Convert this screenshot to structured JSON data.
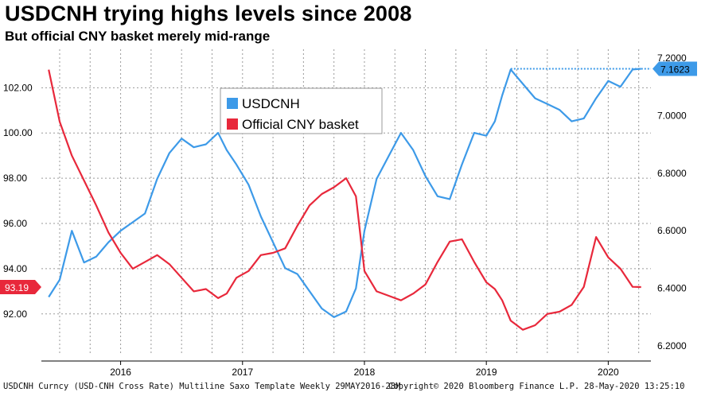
{
  "title": "USDCNH trying highs levels since 2008",
  "subtitle": "But official CNY basket merely mid-range",
  "footer": {
    "left": "USDCNH Curncy (USD-CNH Cross Rate) Multiline Saxo Template  Weekly 29MAY2016-28M",
    "mid": "Copyright© 2020 Bloomberg Finance L.P.",
    "right": "28-May-2020 13:25:10"
  },
  "chart_data": {
    "type": "line",
    "title": "USDCNH trying highs levels since 2008",
    "subtitle": "But official CNY basket merely mid-range",
    "x_ticks": [
      "2016",
      "2017",
      "2018",
      "2019",
      "2020"
    ],
    "x_tick_positions": [
      2016.0,
      2017.0,
      2018.0,
      2019.0,
      2020.0
    ],
    "xlim": [
      2015.35,
      2020.35
    ],
    "left_axis": {
      "ticks": [
        "92.00",
        "94.00",
        "96.00",
        "98.00",
        "100.00",
        "102.00"
      ],
      "ylim": [
        90.2,
        103.7
      ]
    },
    "right_axis": {
      "ticks": [
        "6.2000",
        "6.4000",
        "6.6000",
        "6.8000",
        "7.0000",
        "7.2000"
      ],
      "ylim": [
        6.17,
        7.23
      ]
    },
    "grid": true,
    "legend": {
      "placement": "top-center",
      "entries": [
        "USDCNH",
        "Official CNY basket"
      ]
    },
    "series": [
      {
        "name": "USDCNH",
        "axis": "right",
        "color": "#3d9ae8",
        "last_value_label": "7.1623",
        "x": [
          2015.41,
          2015.5,
          2015.6,
          2015.7,
          2015.8,
          2015.9,
          2016.0,
          2016.1,
          2016.2,
          2016.3,
          2016.4,
          2016.5,
          2016.6,
          2016.7,
          2016.8,
          2016.87,
          2016.95,
          2017.05,
          2017.15,
          2017.25,
          2017.35,
          2017.45,
          2017.55,
          2017.65,
          2017.75,
          2017.85,
          2017.93,
          2018.0,
          2018.1,
          2018.2,
          2018.3,
          2018.4,
          2018.5,
          2018.6,
          2018.7,
          2018.8,
          2018.9,
          2019.0,
          2019.07,
          2019.13,
          2019.2,
          2019.3,
          2019.4,
          2019.5,
          2019.6,
          2019.7,
          2019.8,
          2019.9,
          2020.0,
          2020.1,
          2020.2,
          2020.27
        ],
        "y": [
          6.37,
          6.43,
          6.6,
          6.49,
          6.51,
          6.56,
          6.6,
          6.63,
          6.66,
          6.78,
          6.87,
          6.92,
          6.89,
          6.9,
          6.94,
          6.88,
          6.83,
          6.76,
          6.65,
          6.56,
          6.47,
          6.45,
          6.39,
          6.33,
          6.3,
          6.32,
          6.4,
          6.6,
          6.78,
          6.86,
          6.94,
          6.88,
          6.79,
          6.72,
          6.71,
          6.83,
          6.94,
          6.93,
          6.98,
          7.07,
          7.16,
          7.11,
          7.06,
          7.04,
          7.02,
          6.98,
          6.99,
          7.06,
          7.12,
          7.1,
          7.16,
          7.1623
        ]
      },
      {
        "name": "Official CNY basket",
        "axis": "left",
        "color": "#e8283b",
        "last_value_label": "93.19",
        "x": [
          2015.41,
          2015.5,
          2015.6,
          2015.7,
          2015.8,
          2015.9,
          2016.0,
          2016.1,
          2016.2,
          2016.3,
          2016.4,
          2016.5,
          2016.6,
          2016.7,
          2016.8,
          2016.87,
          2016.95,
          2017.05,
          2017.15,
          2017.25,
          2017.35,
          2017.45,
          2017.55,
          2017.65,
          2017.75,
          2017.85,
          2017.93,
          2018.0,
          2018.1,
          2018.2,
          2018.3,
          2018.4,
          2018.5,
          2018.6,
          2018.7,
          2018.8,
          2018.9,
          2019.0,
          2019.07,
          2019.13,
          2019.2,
          2019.3,
          2019.4,
          2019.5,
          2019.6,
          2019.7,
          2019.8,
          2019.9,
          2020.0,
          2020.1,
          2020.2,
          2020.27
        ],
        "y": [
          102.8,
          100.5,
          99.0,
          97.9,
          96.8,
          95.6,
          94.7,
          94.0,
          94.3,
          94.6,
          94.2,
          93.6,
          93.0,
          93.1,
          92.7,
          92.9,
          93.6,
          93.9,
          94.6,
          94.7,
          94.9,
          95.9,
          96.8,
          97.3,
          97.6,
          98.0,
          97.2,
          93.9,
          93.0,
          92.8,
          92.6,
          92.9,
          93.3,
          94.3,
          95.2,
          95.3,
          94.3,
          93.4,
          93.1,
          92.6,
          91.7,
          91.3,
          91.5,
          92.0,
          92.1,
          92.4,
          93.2,
          95.4,
          94.5,
          94.0,
          93.2,
          93.19
        ]
      }
    ]
  }
}
